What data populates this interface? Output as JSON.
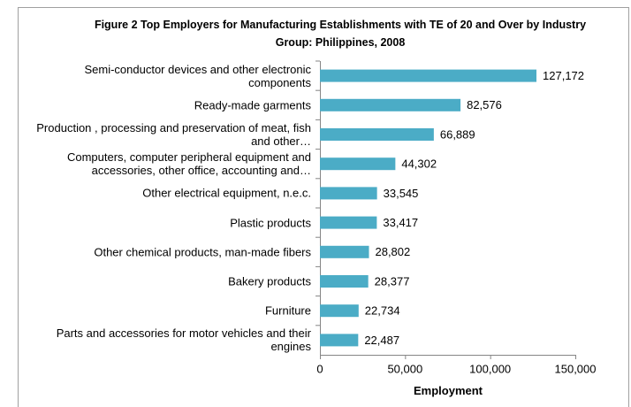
{
  "chart_data": {
    "type": "bar",
    "orientation": "horizontal",
    "title": "Figure 2  Top Employers for Manufacturing Establishments with TE of 20 and Over by Industry Group: Philippines, 2008",
    "x_label": "Employment",
    "categories": [
      "Semi-conductor devices and other electronic components",
      "Ready-made garments",
      "Production , processing and preservation of meat, fish and other…",
      "Computers, computer peripheral equipment and accessories, other office, accounting and…",
      "Other electrical equipment, n.e.c.",
      "Plastic products",
      "Other chemical products, man-made fibers",
      "Bakery products",
      "Furniture",
      "Parts and accessories for motor vehicles and their engines"
    ],
    "values": [
      127172,
      82576,
      66889,
      44302,
      33545,
      33417,
      28802,
      28377,
      22734,
      22487
    ],
    "value_labels": [
      "127,172",
      "82,576",
      "66,889",
      "44,302",
      "33,545",
      "33,417",
      "28,802",
      "28,377",
      "22,734",
      "22,487"
    ],
    "color": "#4bacc6",
    "xlim": [
      0,
      150000
    ],
    "xticks": [
      0,
      {
        "value": 50000,
        "label": "50,000"
      },
      {
        "value": 100000,
        "label": "100,000"
      },
      {
        "value": 150000,
        "label": "150,000"
      }
    ]
  }
}
